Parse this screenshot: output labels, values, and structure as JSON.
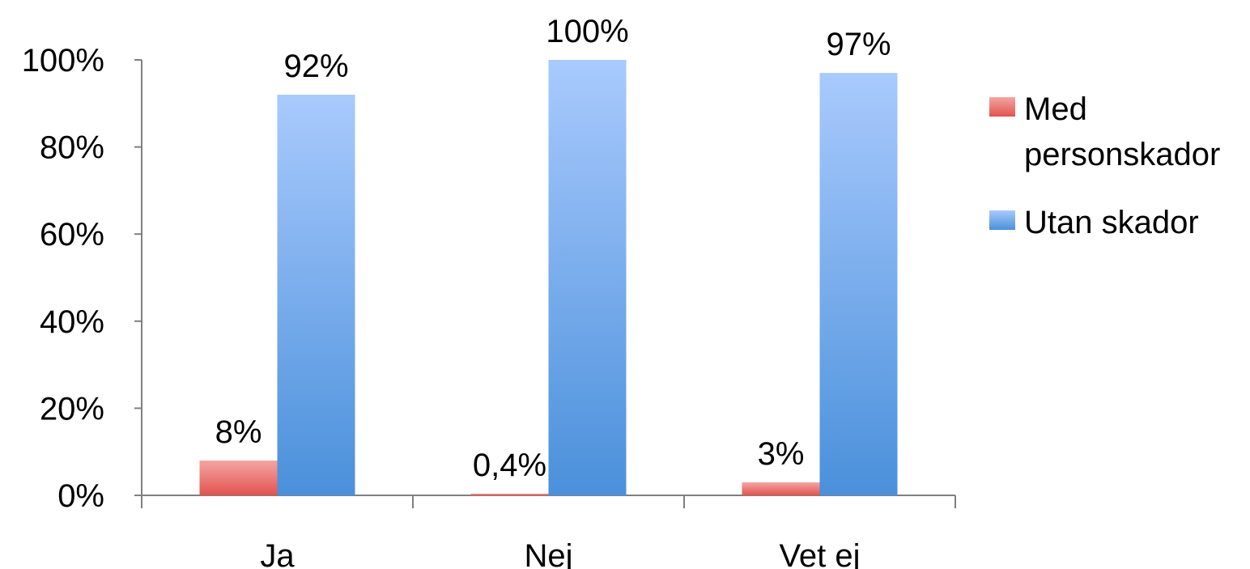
{
  "chart_data": {
    "type": "bar",
    "categories": [
      "Ja",
      "Nej",
      "Vet ej"
    ],
    "series": [
      {
        "name": "Med personskador",
        "name_lines": [
          "Med",
          "personskador"
        ],
        "values": [
          8,
          0.4,
          3
        ],
        "labels": [
          "8%",
          "0,4%",
          "3%"
        ],
        "color_top": "#f4a6a3",
        "color_bottom": "#e2534f"
      },
      {
        "name": "Utan skador",
        "name_lines": [
          "Utan skador"
        ],
        "values": [
          92,
          100,
          97
        ],
        "labels": [
          "92%",
          "100%",
          "97%"
        ],
        "color_top": "#a9cafd",
        "color_bottom": "#4a90db"
      }
    ],
    "y_ticks": [
      0,
      20,
      40,
      60,
      80,
      100
    ],
    "y_tick_labels": [
      "0%",
      "20%",
      "40%",
      "60%",
      "80%",
      "100%"
    ],
    "ylim": [
      0,
      100
    ],
    "title": "",
    "xlabel": "",
    "ylabel": "",
    "grid": false,
    "legend_position": "right"
  }
}
